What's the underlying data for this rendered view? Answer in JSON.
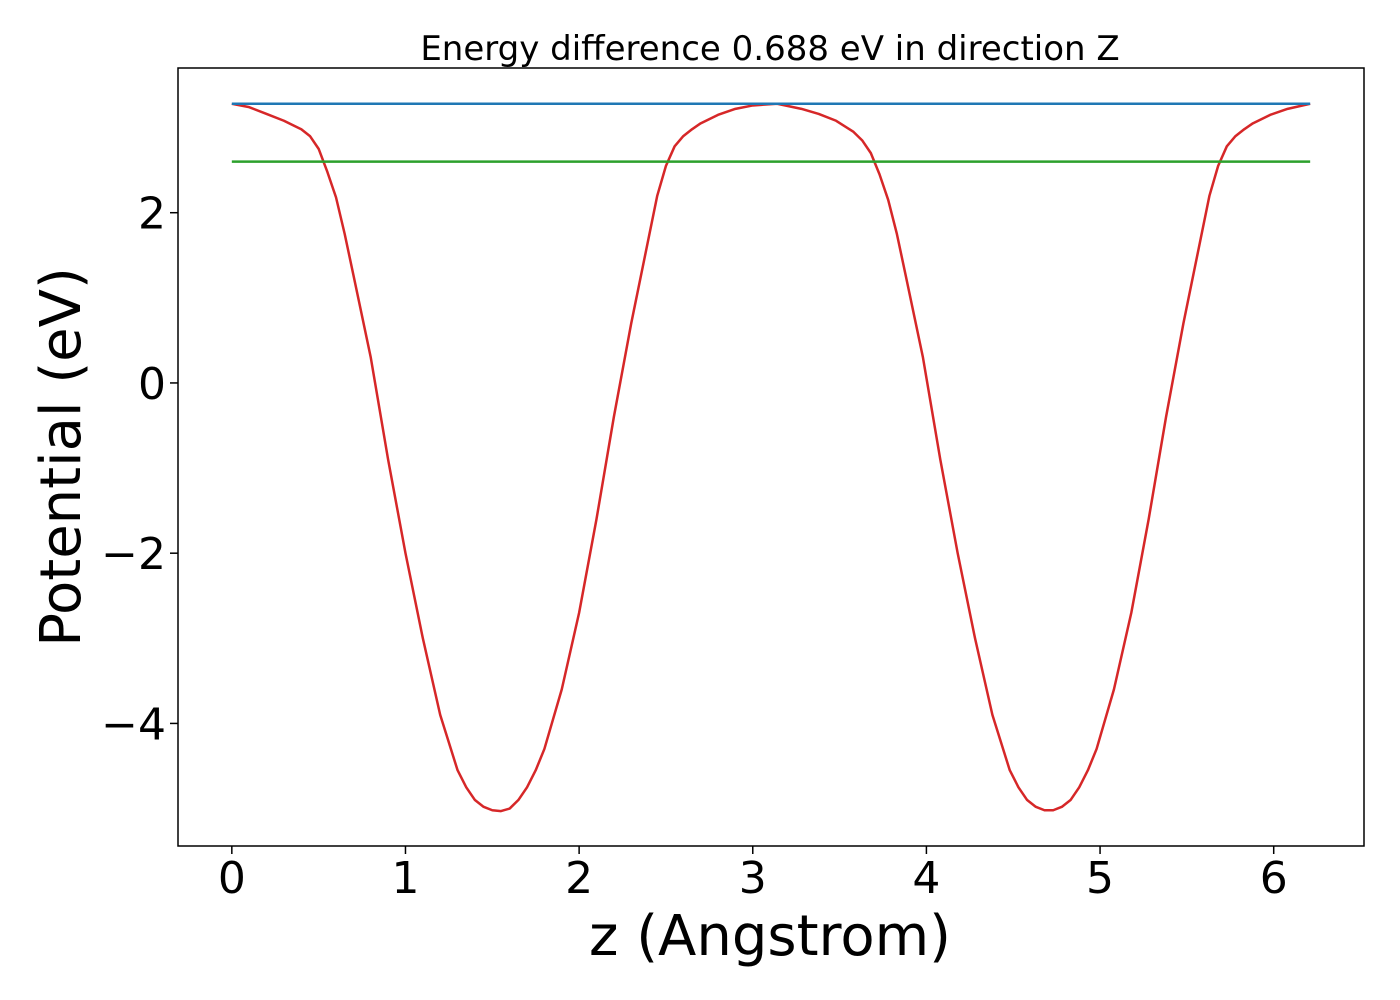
{
  "chart_data": {
    "type": "line",
    "title": "Energy difference 0.688 eV in direction Z",
    "xlabel": "z (Angstrom)",
    "ylabel": "Potential (eV)",
    "xlim": [
      -0.31,
      6.52
    ],
    "ylim": [
      -5.44,
      3.7
    ],
    "x_ticks": [
      0,
      1,
      2,
      3,
      4,
      5,
      6
    ],
    "x_tick_labels": [
      "0",
      "1",
      "2",
      "3",
      "4",
      "5",
      "6"
    ],
    "y_ticks": [
      -4,
      -2,
      0,
      2
    ],
    "y_tick_labels": [
      "−4",
      "−2",
      "0",
      "2"
    ],
    "grid": false,
    "series": [
      {
        "color": "#d62728",
        "x": [
          0,
          0.1,
          0.2,
          0.3,
          0.4,
          0.45,
          0.5,
          0.55,
          0.6,
          0.65,
          0.7,
          0.8,
          0.9,
          1.0,
          1.1,
          1.2,
          1.3,
          1.35,
          1.4,
          1.45,
          1.5,
          1.55,
          1.6,
          1.65,
          1.7,
          1.75,
          1.8,
          1.9,
          2.0,
          2.1,
          2.2,
          2.3,
          2.4,
          2.45,
          2.5,
          2.55,
          2.6,
          2.65,
          2.7,
          2.8,
          2.9,
          3.0,
          3.14,
          3.28,
          3.38,
          3.48,
          3.58,
          3.63,
          3.68,
          3.73,
          3.78,
          3.83,
          3.88,
          3.98,
          4.08,
          4.18,
          4.28,
          4.38,
          4.48,
          4.53,
          4.58,
          4.63,
          4.68,
          4.73,
          4.78,
          4.83,
          4.88,
          4.93,
          4.98,
          5.08,
          5.18,
          5.28,
          5.38,
          5.48,
          5.58,
          5.63,
          5.68,
          5.73,
          5.78,
          5.83,
          5.88,
          5.98,
          6.08,
          6.21
        ],
        "y": [
          3.28,
          3.24,
          3.16,
          3.08,
          2.98,
          2.9,
          2.75,
          2.48,
          2.18,
          1.75,
          1.27,
          0.3,
          -0.9,
          -2.0,
          -3.0,
          -3.9,
          -4.55,
          -4.75,
          -4.9,
          -4.98,
          -5.02,
          -5.03,
          -5.0,
          -4.9,
          -4.75,
          -4.55,
          -4.3,
          -3.6,
          -2.7,
          -1.6,
          -0.4,
          0.7,
          1.7,
          2.2,
          2.55,
          2.78,
          2.9,
          2.98,
          3.05,
          3.15,
          3.22,
          3.26,
          3.28,
          3.22,
          3.16,
          3.08,
          2.95,
          2.85,
          2.7,
          2.45,
          2.15,
          1.75,
          1.27,
          0.3,
          -0.9,
          -2.0,
          -3.0,
          -3.9,
          -4.55,
          -4.75,
          -4.9,
          -4.98,
          -5.02,
          -5.02,
          -4.98,
          -4.9,
          -4.75,
          -4.55,
          -4.3,
          -3.6,
          -2.7,
          -1.6,
          -0.4,
          0.7,
          1.7,
          2.2,
          2.55,
          2.78,
          2.9,
          2.98,
          3.05,
          3.15,
          3.22,
          3.28
        ]
      },
      {
        "color": "#1f77b4",
        "x": [
          0,
          6.21
        ],
        "y": [
          3.28,
          3.28
        ]
      },
      {
        "color": "#2ca02c",
        "x": [
          0,
          6.21
        ],
        "y": [
          2.6,
          2.6
        ]
      }
    ]
  }
}
